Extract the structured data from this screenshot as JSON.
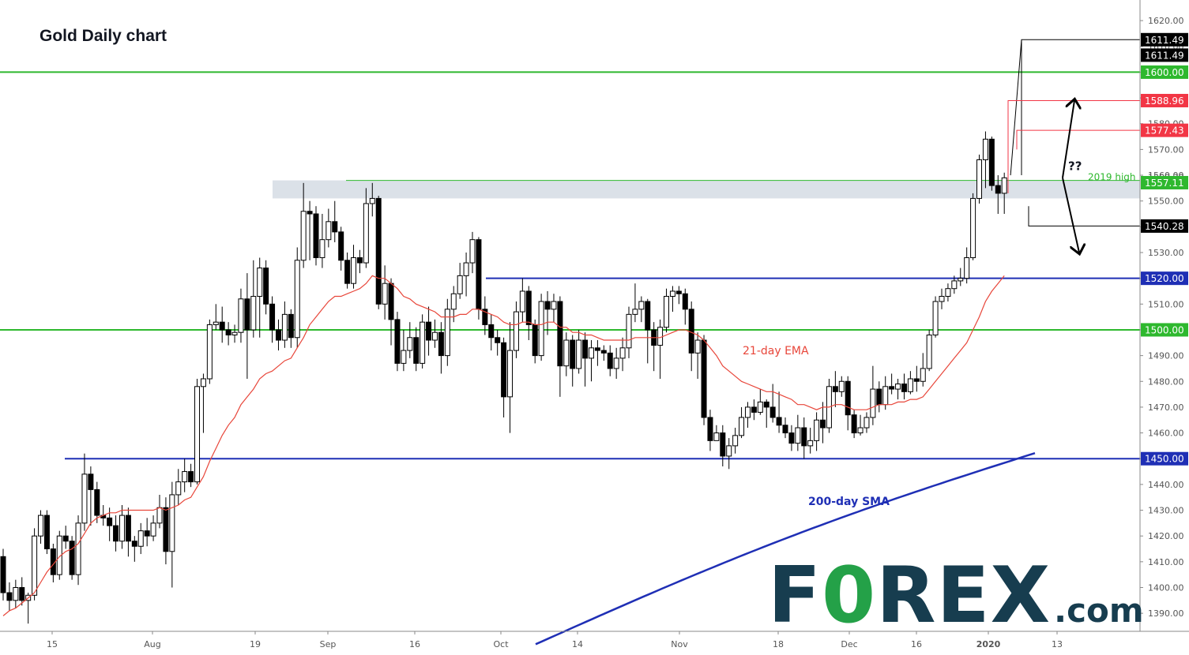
{
  "title": "Gold Daily chart",
  "chart_data": {
    "type": "candlestick",
    "title": "Gold Daily chart",
    "y_range": [
      1383,
      1628
    ],
    "y_ticks": [
      1390,
      1400,
      1410,
      1420,
      1430,
      1440,
      1450,
      1460,
      1470,
      1480,
      1490,
      1500,
      1510,
      1520,
      1530,
      1540,
      1550,
      1560,
      1570,
      1580,
      1590,
      1600,
      1610,
      1620
    ],
    "x_ticks": [
      "15",
      "Aug",
      "19",
      "Sep",
      "16",
      "Oct",
      "14",
      "Nov",
      "18",
      "Dec",
      "16",
      "2020",
      "13"
    ],
    "horizontal_levels": [
      {
        "label": "1600.00",
        "value": 1600,
        "color": "#2eb82e",
        "kind": "line"
      },
      {
        "label": "1500.00",
        "value": 1500,
        "color": "#2eb82e",
        "kind": "line"
      },
      {
        "label": "1520.00",
        "value": 1520,
        "color": "#1f2fb5",
        "kind": "line"
      },
      {
        "label": "1450.00",
        "value": 1450,
        "color": "#1f2fb5",
        "kind": "line"
      }
    ],
    "resistance_zone": {
      "low": 1551,
      "high": 1558
    },
    "price_tags": [
      {
        "label": "1611.49",
        "value": 1612.6,
        "color": "#000000"
      },
      {
        "label": "1611.49",
        "value": 1606.6,
        "color": "#000000"
      },
      {
        "label": "1600.00",
        "value": 1600,
        "color": "#2eb82e"
      },
      {
        "label": "1588.96",
        "value": 1588.96,
        "color": "#f23645"
      },
      {
        "label": "1577.43",
        "value": 1577.43,
        "color": "#f23645"
      },
      {
        "label": "1557.11",
        "value": 1557.11,
        "color": "#2eb82e"
      },
      {
        "label": "1540.28",
        "value": 1540.28,
        "color": "#000000"
      },
      {
        "label": "1520.00",
        "value": 1520,
        "color": "#1f2fb5"
      },
      {
        "label": "1500.00",
        "value": 1500,
        "color": "#2eb82e"
      },
      {
        "label": "1450.00",
        "value": 1450,
        "color": "#1f2fb5"
      }
    ],
    "plain_levels": [
      {
        "label": "1559.30",
        "value": 1559.3
      }
    ],
    "annotations": {
      "high_2019": "2019 high",
      "ema": "21-day EMA",
      "sma": "200-day SMA",
      "question": "??"
    },
    "candles": [
      [
        1412,
        1398,
        1415,
        1395
      ],
      [
        1398,
        1395,
        1402,
        1391
      ],
      [
        1395,
        1400,
        1403,
        1392
      ],
      [
        1400,
        1395,
        1404,
        1393
      ],
      [
        1395,
        1397,
        1398,
        1386
      ],
      [
        1397,
        1420,
        1423,
        1395
      ],
      [
        1420,
        1428,
        1430,
        1417
      ],
      [
        1428,
        1415,
        1430,
        1413
      ],
      [
        1415,
        1405,
        1417,
        1402
      ],
      [
        1405,
        1420,
        1422,
        1403
      ],
      [
        1420,
        1418,
        1424,
        1415
      ],
      [
        1418,
        1405,
        1420,
        1403
      ],
      [
        1405,
        1425,
        1428,
        1401
      ],
      [
        1425,
        1444,
        1452,
        1422
      ],
      [
        1444,
        1438,
        1447,
        1424
      ],
      [
        1438,
        1428,
        1441,
        1425
      ],
      [
        1428,
        1427,
        1432,
        1424
      ],
      [
        1427,
        1424,
        1431,
        1418
      ],
      [
        1424,
        1418,
        1428,
        1414
      ],
      [
        1418,
        1428,
        1432,
        1415
      ],
      [
        1428,
        1418,
        1431,
        1412
      ],
      [
        1418,
        1416,
        1420,
        1410
      ],
      [
        1416,
        1422,
        1425,
        1413
      ],
      [
        1422,
        1420,
        1427,
        1416
      ],
      [
        1420,
        1425,
        1428,
        1418
      ],
      [
        1425,
        1431,
        1436,
        1423
      ],
      [
        1431,
        1414,
        1435,
        1409
      ],
      [
        1414,
        1436,
        1441,
        1400
      ],
      [
        1436,
        1441,
        1446,
        1432
      ],
      [
        1441,
        1445,
        1450,
        1437
      ],
      [
        1445,
        1441,
        1448,
        1439
      ],
      [
        1441,
        1478,
        1481,
        1440
      ],
      [
        1478,
        1481,
        1483,
        1460
      ],
      [
        1481,
        1502,
        1504,
        1479
      ],
      [
        1502,
        1503,
        1510,
        1500
      ],
      [
        1503,
        1500,
        1509,
        1495
      ],
      [
        1500,
        1498,
        1503,
        1494
      ],
      [
        1498,
        1499,
        1502,
        1495
      ],
      [
        1499,
        1512,
        1516,
        1495
      ],
      [
        1512,
        1500,
        1522,
        1481
      ],
      [
        1500,
        1513,
        1527,
        1497
      ],
      [
        1513,
        1524,
        1528,
        1497
      ],
      [
        1524,
        1510,
        1527,
        1506
      ],
      [
        1510,
        1500,
        1513,
        1495
      ],
      [
        1500,
        1496,
        1504,
        1492
      ],
      [
        1496,
        1506,
        1511,
        1493
      ],
      [
        1506,
        1497,
        1508,
        1493
      ],
      [
        1497,
        1527,
        1532,
        1493
      ],
      [
        1527,
        1546,
        1557,
        1524
      ],
      [
        1546,
        1545,
        1550,
        1527
      ],
      [
        1545,
        1528,
        1548,
        1525
      ],
      [
        1528,
        1535,
        1545,
        1524
      ],
      [
        1535,
        1542,
        1547,
        1532
      ],
      [
        1542,
        1538,
        1550,
        1534
      ],
      [
        1538,
        1527,
        1540,
        1523
      ],
      [
        1527,
        1518,
        1530,
        1516
      ],
      [
        1518,
        1528,
        1533,
        1516
      ],
      [
        1528,
        1526,
        1531,
        1522
      ],
      [
        1526,
        1549,
        1555,
        1524
      ],
      [
        1549,
        1551,
        1557,
        1544
      ],
      [
        1551,
        1510,
        1552,
        1508
      ],
      [
        1510,
        1518,
        1525,
        1504
      ],
      [
        1518,
        1504,
        1520,
        1494
      ],
      [
        1504,
        1487,
        1507,
        1484
      ],
      [
        1487,
        1492,
        1500,
        1484
      ],
      [
        1492,
        1497,
        1503,
        1489
      ],
      [
        1497,
        1487,
        1501,
        1484
      ],
      [
        1487,
        1503,
        1506,
        1485
      ],
      [
        1503,
        1496,
        1509,
        1490
      ],
      [
        1496,
        1499,
        1504,
        1493
      ],
      [
        1499,
        1490,
        1503,
        1483
      ],
      [
        1490,
        1508,
        1512,
        1486
      ],
      [
        1508,
        1514,
        1517,
        1503
      ],
      [
        1514,
        1521,
        1526,
        1512
      ],
      [
        1521,
        1526,
        1530,
        1513
      ],
      [
        1526,
        1535,
        1538,
        1522
      ],
      [
        1535,
        1508,
        1536,
        1504
      ],
      [
        1508,
        1502,
        1513,
        1498
      ],
      [
        1502,
        1497,
        1506,
        1492
      ],
      [
        1497,
        1495,
        1500,
        1490
      ],
      [
        1495,
        1474,
        1497,
        1466
      ],
      [
        1474,
        1492,
        1503,
        1460
      ],
      [
        1492,
        1507,
        1511,
        1489
      ],
      [
        1507,
        1515,
        1520,
        1503
      ],
      [
        1515,
        1502,
        1517,
        1496
      ],
      [
        1502,
        1490,
        1504,
        1487
      ],
      [
        1490,
        1511,
        1514,
        1488
      ],
      [
        1511,
        1508,
        1515,
        1498
      ],
      [
        1508,
        1511,
        1514,
        1503
      ],
      [
        1511,
        1486,
        1513,
        1474
      ],
      [
        1486,
        1496,
        1499,
        1482
      ],
      [
        1496,
        1485,
        1498,
        1478
      ],
      [
        1485,
        1496,
        1500,
        1483
      ],
      [
        1496,
        1489,
        1499,
        1478
      ],
      [
        1489,
        1493,
        1496,
        1480
      ],
      [
        1493,
        1492,
        1496,
        1486
      ],
      [
        1492,
        1491,
        1494,
        1488
      ],
      [
        1491,
        1485,
        1494,
        1482
      ],
      [
        1485,
        1489,
        1493,
        1481
      ],
      [
        1489,
        1493,
        1497,
        1484
      ],
      [
        1493,
        1506,
        1509,
        1489
      ],
      [
        1506,
        1508,
        1518,
        1503
      ],
      [
        1508,
        1511,
        1513,
        1503
      ],
      [
        1511,
        1500,
        1512,
        1487
      ],
      [
        1500,
        1494,
        1503,
        1484
      ],
      [
        1494,
        1501,
        1504,
        1481
      ],
      [
        1501,
        1513,
        1516,
        1499
      ],
      [
        1513,
        1515,
        1517,
        1507
      ],
      [
        1515,
        1514,
        1517,
        1510
      ],
      [
        1514,
        1508,
        1516,
        1502
      ],
      [
        1508,
        1491,
        1511,
        1484
      ],
      [
        1491,
        1496,
        1499,
        1481
      ],
      [
        1496,
        1466,
        1498,
        1463
      ],
      [
        1466,
        1457,
        1469,
        1453
      ],
      [
        1457,
        1460,
        1463,
        1457
      ],
      [
        1460,
        1451,
        1463,
        1447
      ],
      [
        1451,
        1455,
        1458,
        1446
      ],
      [
        1455,
        1459,
        1462,
        1452
      ],
      [
        1459,
        1466,
        1470,
        1458
      ],
      [
        1466,
        1470,
        1472,
        1462
      ],
      [
        1470,
        1468,
        1473,
        1465
      ],
      [
        1468,
        1472,
        1477,
        1467
      ],
      [
        1472,
        1470,
        1473,
        1462
      ],
      [
        1470,
        1466,
        1479,
        1464
      ],
      [
        1466,
        1463,
        1476,
        1460
      ],
      [
        1463,
        1460,
        1466,
        1458
      ],
      [
        1460,
        1456,
        1463,
        1453
      ],
      [
        1456,
        1462,
        1467,
        1453
      ],
      [
        1462,
        1455,
        1466,
        1450
      ],
      [
        1455,
        1457,
        1462,
        1452
      ],
      [
        1457,
        1465,
        1468,
        1453
      ],
      [
        1465,
        1462,
        1472,
        1456
      ],
      [
        1462,
        1478,
        1481,
        1460
      ],
      [
        1478,
        1476,
        1484,
        1470
      ],
      [
        1476,
        1480,
        1482,
        1474
      ],
      [
        1480,
        1467,
        1482,
        1461
      ],
      [
        1467,
        1460,
        1469,
        1458
      ],
      [
        1460,
        1462,
        1467,
        1459
      ],
      [
        1462,
        1466,
        1468,
        1460
      ],
      [
        1466,
        1477,
        1486,
        1463
      ],
      [
        1477,
        1471,
        1480,
        1468
      ],
      [
        1471,
        1478,
        1482,
        1469
      ],
      [
        1478,
        1477,
        1483,
        1475
      ],
      [
        1477,
        1479,
        1481,
        1473
      ],
      [
        1479,
        1476,
        1483,
        1473
      ],
      [
        1476,
        1481,
        1484,
        1475
      ],
      [
        1481,
        1480,
        1486,
        1476
      ],
      [
        1480,
        1485,
        1491,
        1478
      ],
      [
        1485,
        1498,
        1500,
        1484
      ],
      [
        1498,
        1511,
        1513,
        1497
      ],
      [
        1511,
        1513,
        1516,
        1508
      ],
      [
        1513,
        1516,
        1518,
        1511
      ],
      [
        1516,
        1519,
        1521,
        1514
      ],
      [
        1519,
        1520,
        1524,
        1517
      ],
      [
        1520,
        1528,
        1532,
        1518
      ],
      [
        1528,
        1551,
        1553,
        1527
      ],
      [
        1551,
        1566,
        1568,
        1549
      ],
      [
        1566,
        1574,
        1577,
        1555
      ],
      [
        1574,
        1556,
        1575,
        1554
      ],
      [
        1556,
        1553,
        1560,
        1545
      ],
      [
        1553,
        1559,
        1561,
        1545
      ]
    ],
    "ema21": [
      1389,
      1391,
      1392,
      1394,
      1396,
      1398,
      1402,
      1406,
      1409,
      1412,
      1414,
      1415,
      1417,
      1421,
      1425,
      1427,
      1428,
      1429,
      1429,
      1430,
      1430,
      1430,
      1430,
      1430,
      1430,
      1431,
      1430,
      1431,
      1432,
      1434,
      1435,
      1439,
      1443,
      1449,
      1454,
      1459,
      1463,
      1466,
      1471,
      1474,
      1477,
      1481,
      1483,
      1484,
      1486,
      1488,
      1489,
      1493,
      1497,
      1502,
      1505,
      1508,
      1511,
      1513,
      1513,
      1514,
      1515,
      1516,
      1518,
      1521,
      1520,
      1520,
      1518,
      1516,
      1513,
      1512,
      1510,
      1509,
      1508,
      1507,
      1505,
      1505,
      1505,
      1506,
      1506,
      1508,
      1508,
      1507,
      1506,
      1505,
      1503,
      1502,
      1502,
      1503,
      1503,
      1502,
      1502,
      1503,
      1503,
      1501,
      1501,
      1499,
      1499,
      1498,
      1498,
      1497,
      1496,
      1496,
      1496,
      1496,
      1496,
      1497,
      1497,
      1497,
      1497,
      1497,
      1498,
      1499,
      1500,
      1500,
      1499,
      1498,
      1496,
      1493,
      1490,
      1486,
      1484,
      1482,
      1480,
      1479,
      1478,
      1477,
      1476,
      1476,
      1475,
      1474,
      1473,
      1471,
      1471,
      1470,
      1469,
      1470,
      1470,
      1471,
      1471,
      1470,
      1469,
      1469,
      1469,
      1470,
      1471,
      1471,
      1471,
      1472,
      1472,
      1473,
      1473,
      1474,
      1477,
      1480,
      1483,
      1486,
      1489,
      1492,
      1495,
      1500,
      1505,
      1511,
      1515,
      1518,
      1521
    ]
  }
}
